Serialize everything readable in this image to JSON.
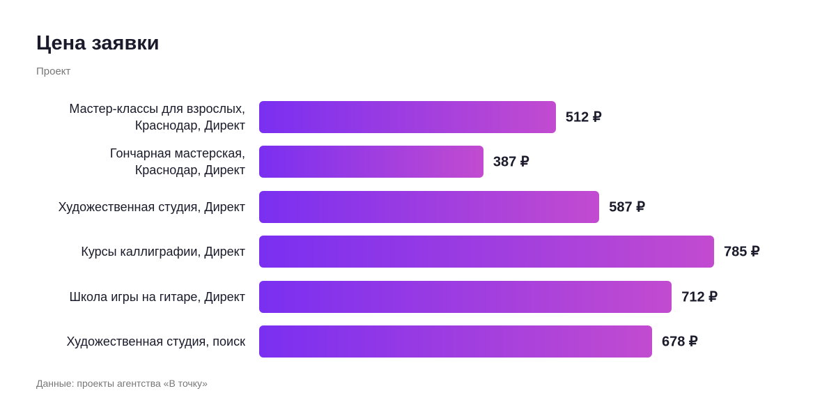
{
  "chart_data": {
    "type": "bar",
    "orientation": "horizontal",
    "title": "Цена заявки",
    "subtitle": "Проект",
    "source": "Данные: проекты агентства «В точку»",
    "categories": [
      "Мастер-классы для взрослых,\nКраснодар, Директ",
      "Гончарная мастерская,\nКраснодар, Директ",
      "Художественная студия, Директ",
      "Курсы каллиграфии, Директ",
      "Школа игры на гитаре, Директ",
      "Художественная студия, поиск"
    ],
    "values": [
      512,
      387,
      587,
      785,
      712,
      678
    ],
    "value_labels": [
      "512 ₽",
      "387 ₽",
      "587 ₽",
      "785 ₽",
      "712 ₽",
      "678 ₽"
    ],
    "color": [
      "#7a2ff1",
      "#c24bd0"
    ]
  }
}
